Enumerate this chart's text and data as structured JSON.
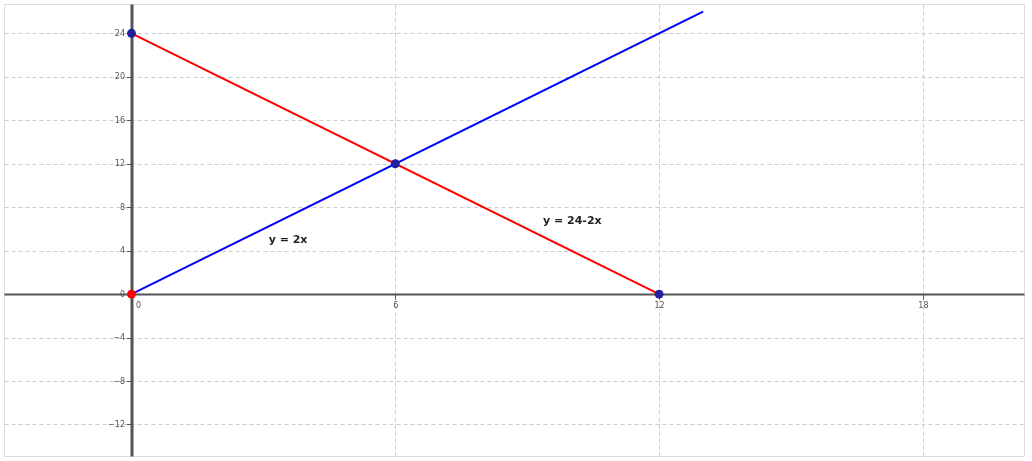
{
  "chart_data": {
    "type": "line",
    "xlim": [
      -2.9,
      20.3
    ],
    "ylim": [
      -14.9,
      26.7
    ],
    "xticks": [
      0,
      6,
      12,
      18
    ],
    "yticks": [
      -12,
      -8,
      -4,
      0,
      4,
      8,
      12,
      16,
      20,
      24
    ],
    "grid": true,
    "line_style": "solid",
    "series": [
      {
        "color": "#0000ff",
        "marker": "none",
        "x": [
          0,
          13
        ],
        "values": [
          0,
          26
        ]
      },
      {
        "color": "#ff0000",
        "marker": "none",
        "x": [
          0,
          12
        ],
        "values": [
          24,
          0
        ]
      },
      {
        "type": "scatter",
        "marker": "circle",
        "color": "#2020a0",
        "x": [
          0,
          6,
          12
        ],
        "values": [
          24,
          12,
          0
        ]
      },
      {
        "type": "scatter",
        "marker": "circle",
        "color": "#ff0000",
        "x": [
          0
        ],
        "values": [
          0
        ]
      }
    ],
    "annotations": [
      "y = 2x",
      "y = 24-2x"
    ]
  }
}
